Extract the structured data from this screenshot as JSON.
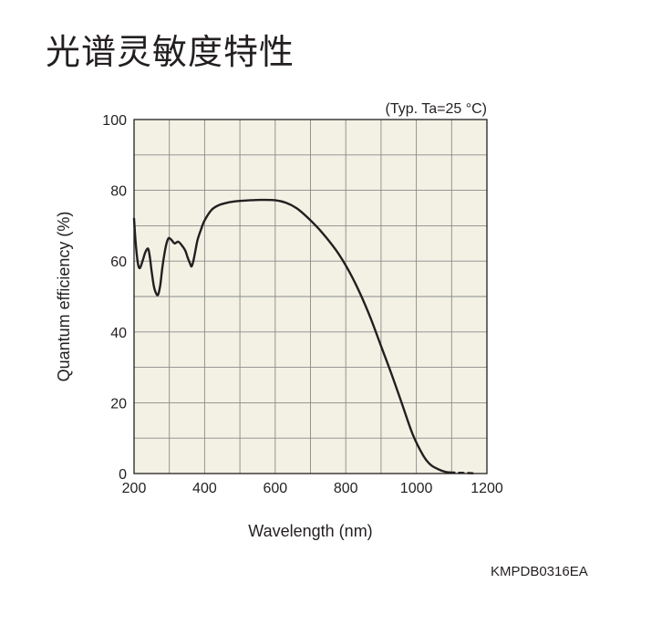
{
  "page": {
    "title": "光谱灵敏度特性",
    "doc_code": "KMPDB0316EA"
  },
  "chart_data": {
    "type": "line",
    "title": "光谱灵敏度特性",
    "condition": "(Typ. Ta=25 °C)",
    "xlabel": "Wavelength (nm)",
    "ylabel": "Quantum efficiency (%)",
    "xlim": [
      200,
      1200
    ],
    "ylim": [
      0,
      100
    ],
    "x_ticks": [
      200,
      400,
      600,
      800,
      1000,
      1200
    ],
    "y_ticks": [
      0,
      20,
      40,
      60,
      80,
      100
    ],
    "grid": true,
    "colors": {
      "plot_background": "#f3f1e4",
      "grid": "#8a8a8a",
      "line": "#231f20"
    },
    "series": [
      {
        "style": "solid",
        "x": [
          200,
          204,
          210,
          216,
          224,
          232,
          240,
          245,
          250,
          256,
          262,
          268,
          274,
          280,
          286,
          292,
          298,
          306,
          315,
          325,
          335,
          345,
          352,
          358,
          363,
          368,
          374,
          380,
          390,
          400,
          420,
          440,
          460,
          480,
          500,
          530,
          560,
          600,
          630,
          660,
          690,
          720,
          750,
          780,
          810,
          840,
          870,
          900,
          930,
          960,
          990,
          1020,
          1040,
          1060,
          1075,
          1085,
          1095
        ],
        "y": [
          72,
          66,
          60,
          58,
          60,
          62.5,
          63.5,
          61,
          57,
          53,
          51,
          50.5,
          53,
          58,
          62,
          65,
          66.5,
          66,
          65,
          65.5,
          64.5,
          63,
          61,
          59.5,
          58.5,
          60,
          63,
          66,
          69,
          71.5,
          74.5,
          75.8,
          76.4,
          76.8,
          77,
          77.2,
          77.3,
          77.2,
          76.5,
          75,
          72.5,
          69.5,
          66,
          62,
          57,
          51,
          44,
          36,
          28,
          19.5,
          11,
          5,
          2.5,
          1.3,
          0.7,
          0.4,
          0.3
        ]
      },
      {
        "style": "dashed",
        "x": [
          1095,
          1110,
          1125,
          1140,
          1155,
          1170
        ],
        "y": [
          0.3,
          0.25,
          0.2,
          0.15,
          0.1,
          0.05
        ]
      }
    ]
  }
}
